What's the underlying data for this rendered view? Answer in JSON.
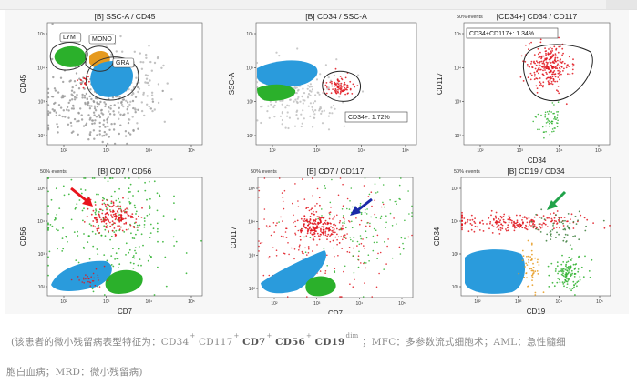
{
  "header": {
    "badge": ""
  },
  "chart_data": [
    {
      "type": "scatter",
      "title": "[B] SSC-A / CD45",
      "xlabel": "",
      "ylabel": "CD45",
      "events_label": "",
      "y_ticks": [
        "10²",
        "10³",
        "10⁴",
        "10⁵"
      ],
      "x_ticks": [
        "10²",
        "10³",
        "10⁴",
        "10⁵"
      ],
      "gates": [
        "LYM",
        "MONO",
        "GRA"
      ],
      "populations": [
        "lymphocytes",
        "monocytes",
        "granulocytes",
        "debris"
      ]
    },
    {
      "type": "scatter",
      "title": "[B] CD34 / SSC-A",
      "xlabel": "",
      "ylabel": "SSC-A",
      "events_label": "",
      "y_ticks": [
        "10²",
        "10³",
        "10⁴",
        "10⁵"
      ],
      "x_ticks": [
        "10²",
        "10³",
        "10⁴",
        "10⁵"
      ],
      "gate_label": "CD34+: 1.72%"
    },
    {
      "type": "scatter",
      "title": "[CD34+] CD34 / CD117",
      "xlabel": "CD34",
      "ylabel": "CD117",
      "events_label": "50% events",
      "y_ticks": [
        "10²",
        "10³",
        "10⁴",
        "10⁵"
      ],
      "x_ticks": [
        "10²",
        "10³",
        "10⁴",
        "10⁵"
      ],
      "gate_label": "CD34+CD117+: 1.34%"
    },
    {
      "type": "scatter",
      "title": "[B] CD7 / CD56",
      "xlabel": "CD7",
      "ylabel": "CD56",
      "events_label": "50% events",
      "y_ticks": [
        "10²",
        "10³",
        "10⁴",
        "10⁵"
      ],
      "x_ticks": [
        "10²",
        "10³",
        "10⁴",
        "10⁵"
      ],
      "arrow_color": "#e8141c"
    },
    {
      "type": "scatter",
      "title": "[B] CD7 / CD117",
      "xlabel": "CD7",
      "ylabel": "CD117",
      "events_label": "50% events",
      "y_ticks": [
        "10²",
        "10³",
        "10⁴",
        "10⁵"
      ],
      "x_ticks": [
        "10²",
        "10³",
        "10⁴",
        "10⁵"
      ],
      "arrow_color": "#1a2aa8"
    },
    {
      "type": "scatter",
      "title": "[B] CD19 / CD34",
      "xlabel": "CD19",
      "ylabel": "CD34",
      "events_label": "50% events",
      "y_ticks": [
        "10²",
        "10³",
        "10⁴",
        "10⁵"
      ],
      "x_ticks": [
        "10²",
        "10³",
        "10⁴",
        "10⁵"
      ],
      "arrow_color": "#21a34a"
    }
  ],
  "colors": {
    "blast_red": "#e0141c",
    "lymph_green": "#2bb02b",
    "gran_blue": "#2a9bdc",
    "mono_orange": "#e69a1e",
    "debris_gray": "#9a9a9a"
  },
  "caption": {
    "open": "(该患者的微小残留病表型特征为：CD34",
    "sup_plus": "+",
    "cd117": "CD117",
    "cd7": "CD7",
    "cd56": "CD56",
    "cd19": "CD19",
    "sup_dim": "dim",
    "rest1": "；MFC：多参数流式细胞术；AML：急性髓细",
    "line2": "胞白血病；MRD：微小残留病)"
  }
}
